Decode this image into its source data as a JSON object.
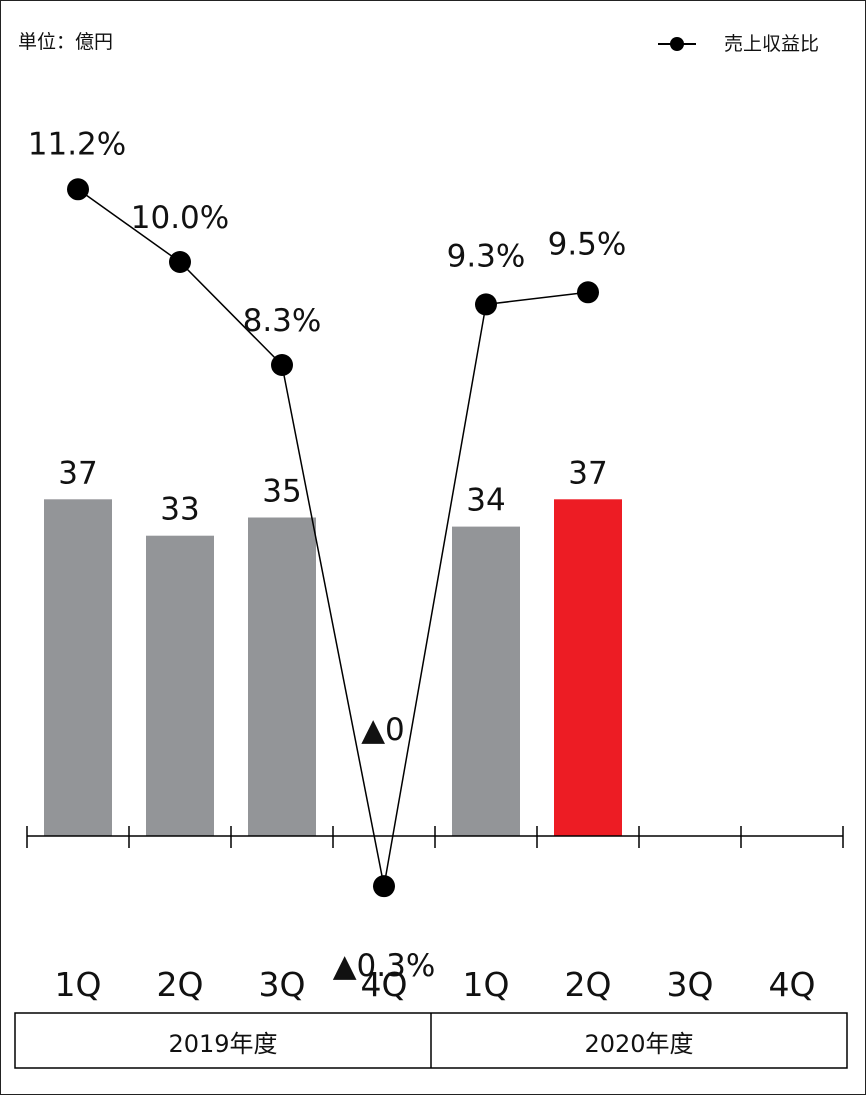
{
  "unit_label": "単位：億円",
  "legend": {
    "label": "売上収益比"
  },
  "colors": {
    "bar": "#939598",
    "highlight": "#ed1c24",
    "line": "#000000"
  },
  "chart_data": {
    "type": "bar",
    "categories": [
      "1Q",
      "2Q",
      "3Q",
      "4Q",
      "1Q",
      "2Q",
      "3Q",
      "4Q"
    ],
    "groups": [
      {
        "label": "2019年度",
        "categories": [
          "1Q",
          "2Q",
          "3Q",
          "4Q"
        ]
      },
      {
        "label": "2020年度",
        "categories": [
          "1Q",
          "2Q",
          "3Q",
          "4Q"
        ]
      }
    ],
    "series": [
      {
        "type": "bar",
        "values": [
          37,
          33,
          35,
          0,
          34,
          37,
          null,
          null
        ],
        "data_labels": [
          "37",
          "33",
          "35",
          "▲0",
          "34",
          "37",
          "",
          ""
        ],
        "highlight_index": 5
      },
      {
        "type": "line",
        "name": "売上収益比",
        "values": [
          11.2,
          10.0,
          8.3,
          -0.3,
          9.3,
          9.5,
          null,
          null
        ],
        "data_labels": [
          "11.2%",
          "10.0%",
          "8.3%",
          "▲0.3%",
          "9.3%",
          "9.5%",
          "",
          ""
        ]
      }
    ],
    "legend": "top-right"
  }
}
